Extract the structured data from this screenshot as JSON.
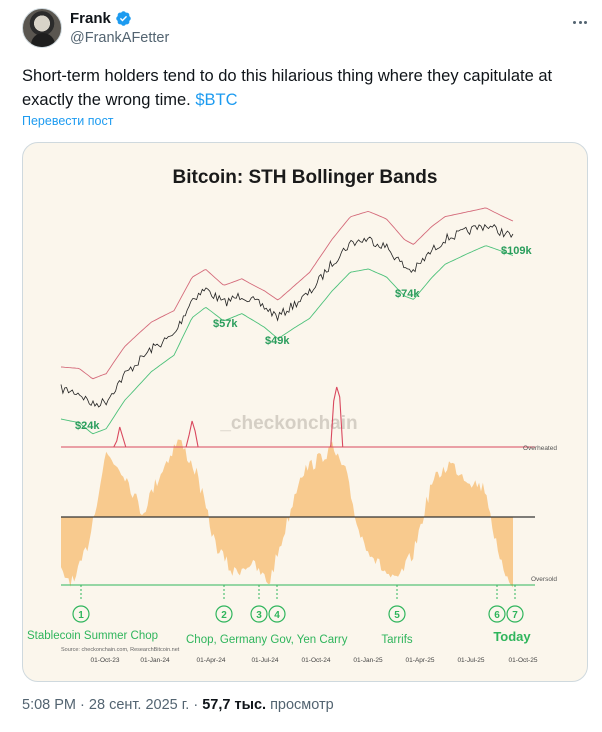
{
  "author": {
    "display_name": "Frank",
    "handle": "@FrankAFetter",
    "verified_color": "#1d9bf0"
  },
  "tweet": {
    "text_before": "Short-term holders tend to do this hilarious thing where they capitulate at exactly the wrong time.",
    "cashtag": "$BTC",
    "translate_label": "Перевести пост"
  },
  "chart_data": {
    "type": "line",
    "title": "Bitcoin: STH Bollinger Bands",
    "watermark": "_checkonchain",
    "source": "Source: checkonchain.com, ResearchBitcoin.net",
    "x_ticks": [
      "01-Oct-23",
      "01-Jan-24",
      "01-Apr-24",
      "01-Jul-24",
      "01-Oct-24",
      "01-Jan-25",
      "01-Apr-25",
      "01-Jul-25",
      "01-Oct-25"
    ],
    "price_labels": [
      {
        "label": "$24k",
        "color": "#2a9d5c"
      },
      {
        "label": "$57k",
        "color": "#2a9d5c"
      },
      {
        "label": "$49k",
        "color": "#2a9d5c"
      },
      {
        "label": "$74k",
        "color": "#2a9d5c"
      },
      {
        "label": "$109k",
        "color": "#2a9d5c"
      }
    ],
    "series": [
      {
        "name": "Price",
        "color": "#222222"
      },
      {
        "name": "Upper band",
        "color": "#d46a7a"
      },
      {
        "name": "Lower band",
        "color": "#4cc17a"
      }
    ],
    "oscillator": {
      "fill_color": "#f7c27e",
      "overheated_label": "Overheated",
      "overheated_color": "#d9485e",
      "oversold_label": "Oversold",
      "oversold_color": "#2fb55c"
    },
    "events": [
      {
        "number": "1",
        "label": "Stablecoin Summer Chop"
      },
      {
        "number": "2",
        "label": ""
      },
      {
        "number": "3",
        "label": ""
      },
      {
        "number": "4",
        "label": ""
      },
      {
        "number": "5",
        "label": "Tarrifs"
      },
      {
        "number": "6",
        "label": ""
      },
      {
        "number": "7",
        "label": ""
      }
    ],
    "event_group_label": "Chop, Germany Gov, Yen Carry",
    "today_label": "Today",
    "event_color": "#2fb55c"
  },
  "footer": {
    "time": "5:08 PM",
    "separator": "·",
    "date": "28 сент. 2025 г.",
    "views_count": "57,7 тыс.",
    "views_label": "просмотр"
  }
}
